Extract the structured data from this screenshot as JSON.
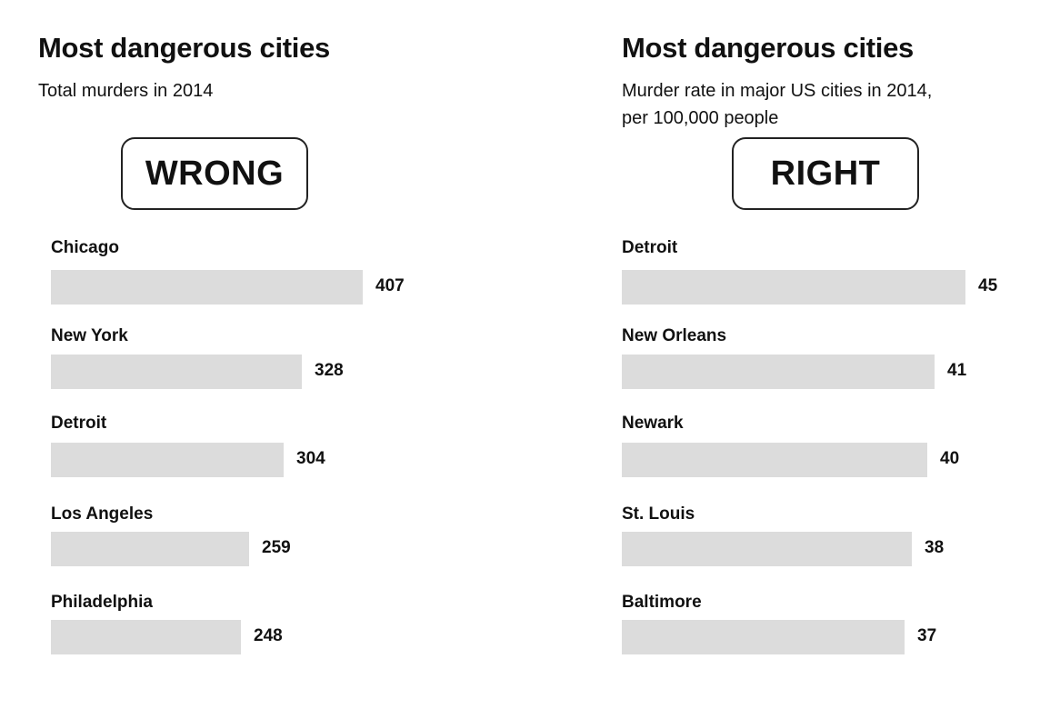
{
  "chart_data": [
    {
      "type": "bar",
      "orientation": "horizontal",
      "title": "Most dangerous cities",
      "subtitle": [
        "Total murders in 2014"
      ],
      "verdict": "WRONG",
      "categories": [
        "Chicago",
        "New York",
        "Detroit",
        "Los Angeles",
        "Philadelphia"
      ],
      "values": [
        407,
        328,
        304,
        259,
        248
      ],
      "value_labels": [
        "407",
        "328",
        "304",
        "259",
        "248"
      ],
      "bar_color": "#dcdcdc"
    },
    {
      "type": "bar",
      "orientation": "horizontal",
      "title": "Most dangerous cities",
      "subtitle": [
        "Murder rate in major US cities in 2014,",
        "per 100,000 people"
      ],
      "verdict": "RIGHT",
      "categories": [
        "Detroit",
        "New Orleans",
        "Newark",
        "St. Louis",
        "Baltimore"
      ],
      "values": [
        45,
        41,
        40,
        38,
        37
      ],
      "value_labels": [
        "45",
        "41",
        "40",
        "38",
        "37"
      ],
      "bar_color": "#dcdcdc"
    }
  ]
}
